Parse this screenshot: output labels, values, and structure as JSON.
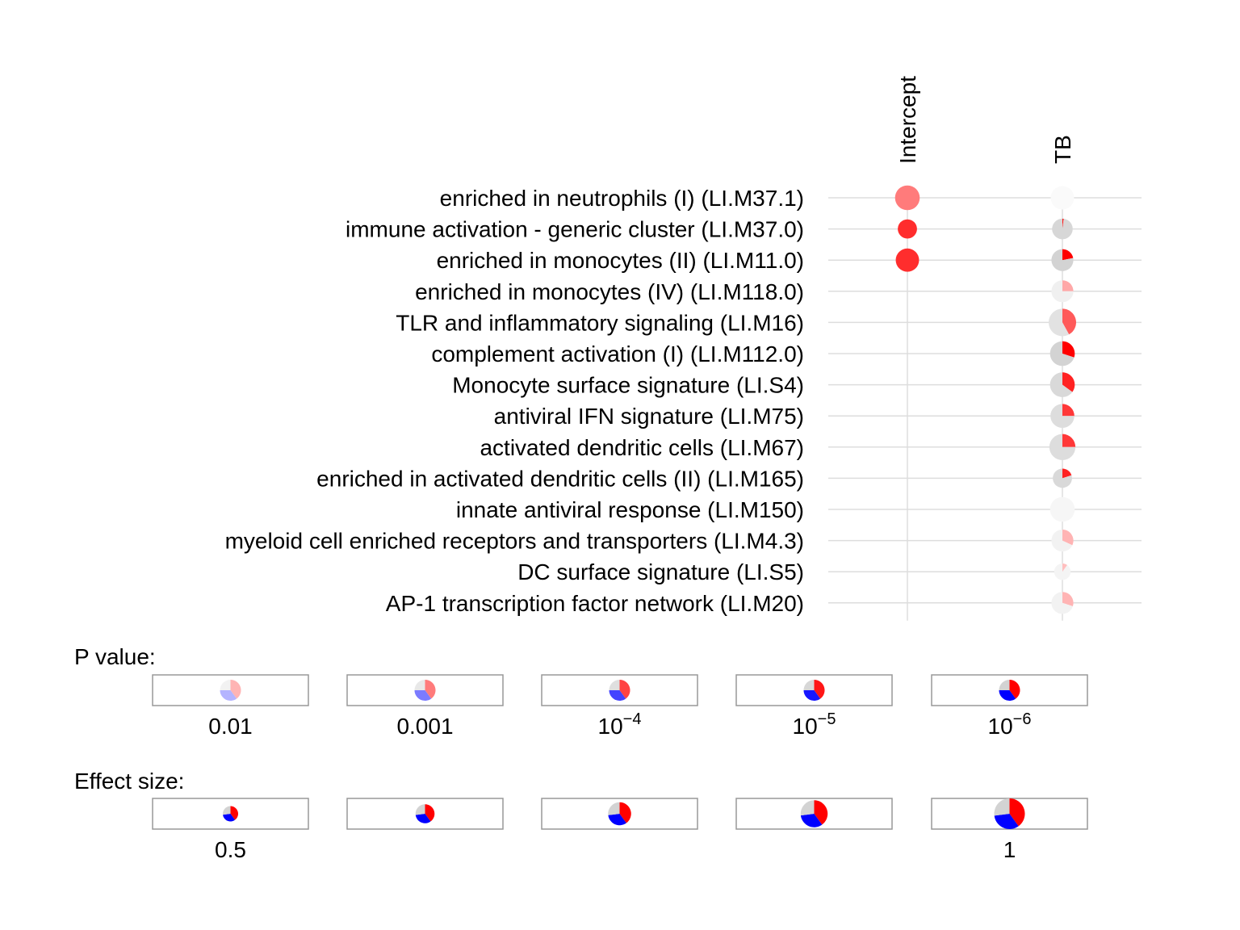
{
  "chart_data": {
    "type": "pie-matrix",
    "columns": [
      "Intercept",
      "TB"
    ],
    "rows": [
      {
        "label": "enriched in neutrophils (I) (LI.M37.1)",
        "cells": [
          {
            "size": 0.9,
            "intensity": 0.45,
            "up": 1.0,
            "down": 0.0
          },
          {
            "size": 0.85,
            "intensity": 0.0,
            "up": 0.0,
            "down": 0.0
          }
        ]
      },
      {
        "label": "immune activation - generic cluster (LI.M37.0)",
        "cells": [
          {
            "size": 0.7,
            "intensity": 0.8,
            "up": 1.0,
            "down": 0.0
          },
          {
            "size": 0.75,
            "intensity": 0.9,
            "up": 0.02,
            "down": 0.0
          }
        ]
      },
      {
        "label": "enriched in monocytes (II) (LI.M11.0)",
        "cells": [
          {
            "size": 0.85,
            "intensity": 0.8,
            "up": 1.0,
            "down": 0.0
          },
          {
            "size": 0.8,
            "intensity": 1.0,
            "up": 0.22,
            "down": 0.0
          }
        ]
      },
      {
        "label": "enriched in monocytes (IV) (LI.M118.0)",
        "cells": [
          null,
          {
            "size": 0.8,
            "intensity": 0.25,
            "up": 0.25,
            "down": 0.0
          }
        ]
      },
      {
        "label": "TLR and inflammatory signaling (LI.M16)",
        "cells": [
          null,
          {
            "size": 1.0,
            "intensity": 0.6,
            "up": 0.42,
            "down": 0.0
          }
        ]
      },
      {
        "label": "complement activation (I) (LI.M112.0)",
        "cells": [
          null,
          {
            "size": 0.9,
            "intensity": 1.0,
            "up": 0.3,
            "down": 0.0
          }
        ]
      },
      {
        "label": "Monocyte surface signature (LI.S4)",
        "cells": [
          null,
          {
            "size": 0.9,
            "intensity": 0.85,
            "up": 0.35,
            "down": 0.0
          }
        ]
      },
      {
        "label": "antiviral IFN signature (LI.M75)",
        "cells": [
          null,
          {
            "size": 0.87,
            "intensity": 0.75,
            "up": 0.25,
            "down": 0.0
          }
        ]
      },
      {
        "label": "activated dendritic cells (LI.M67)",
        "cells": [
          null,
          {
            "size": 0.95,
            "intensity": 0.75,
            "up": 0.25,
            "down": 0.0
          }
        ]
      },
      {
        "label": "enriched in activated dendritic cells (II) (LI.M165)",
        "cells": [
          null,
          {
            "size": 0.7,
            "intensity": 0.85,
            "up": 0.2,
            "down": 0.0
          }
        ]
      },
      {
        "label": "innate antiviral response (LI.M150)",
        "cells": [
          null,
          {
            "size": 0.9,
            "intensity": 0.1,
            "up": 0.0,
            "down": 0.0
          }
        ]
      },
      {
        "label": "myeloid cell enriched receptors and transporters (LI.M4.3)",
        "cells": [
          null,
          {
            "size": 0.8,
            "intensity": 0.2,
            "up": 0.32,
            "down": 0.0
          }
        ]
      },
      {
        "label": "DC surface signature (LI.S5)",
        "cells": [
          null,
          {
            "size": 0.6,
            "intensity": 0.15,
            "up": 0.1,
            "down": 0.0
          }
        ]
      },
      {
        "label": "AP-1 transcription factor network (LI.M20)",
        "cells": [
          null,
          {
            "size": 0.8,
            "intensity": 0.2,
            "up": 0.3,
            "down": 0.0
          }
        ]
      }
    ],
    "legends": {
      "pvalue": {
        "title": "P value:",
        "items": [
          {
            "base": "0.01",
            "exp": "",
            "intensity": 0.2
          },
          {
            "base": "0.001",
            "exp": "",
            "intensity": 0.45
          },
          {
            "base": "10",
            "exp": "−4",
            "intensity": 0.7
          },
          {
            "base": "10",
            "exp": "−5",
            "intensity": 0.9
          },
          {
            "base": "10",
            "exp": "−6",
            "intensity": 1.0
          }
        ]
      },
      "effect": {
        "title": "Effect size:",
        "items": [
          {
            "label": "0.5",
            "size": 0.5
          },
          {
            "label": "",
            "size": 0.62
          },
          {
            "label": "",
            "size": 0.75
          },
          {
            "label": "",
            "size": 0.88
          },
          {
            "label": "1",
            "size": 1.0
          }
        ]
      }
    },
    "colors": {
      "up": "#ff0000",
      "down": "#0000ff",
      "ns": "#d3d3d3",
      "grid": "#dddddd",
      "legend_border": "#999999"
    }
  }
}
